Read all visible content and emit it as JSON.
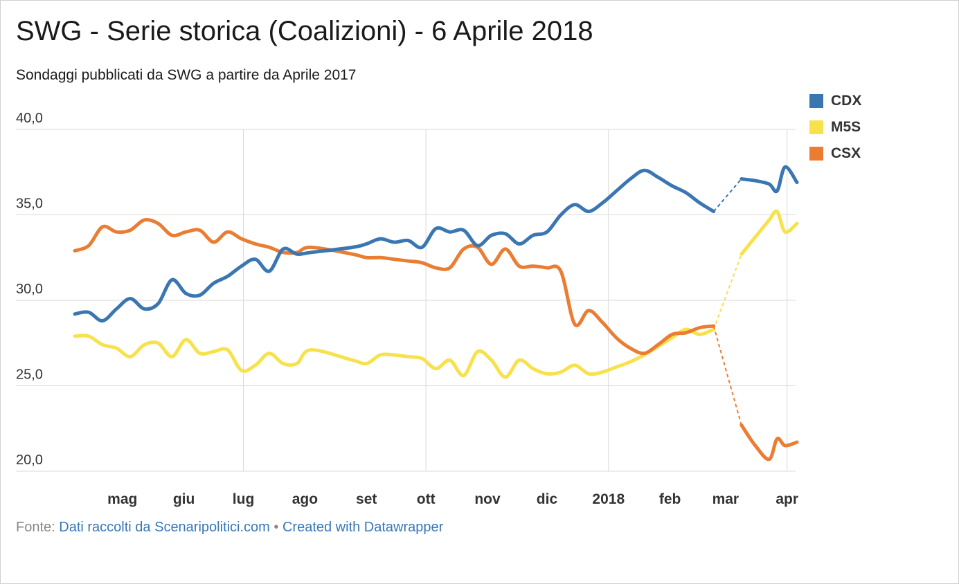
{
  "header": {
    "title": "SWG - Serie storica (Coalizioni) - 6 Aprile 2018",
    "subtitle": "Sondaggi pubblicati da SWG a partire da Aprile 2017"
  },
  "footer": {
    "prefix": "Fonte:",
    "source_link": "Dati raccolti da Scenaripolitici.com",
    "separator": "•",
    "credit_link": "Created with Datawrapper"
  },
  "colors": {
    "CDX": "#3a76b1",
    "M5S": "#f7e24d",
    "CSX": "#eb7d33",
    "grid": "#d9d9d9"
  },
  "chart_data": {
    "type": "line",
    "title": "SWG - Serie storica (Coalizioni) - 6 Aprile 2018",
    "subtitle": "Sondaggi pubblicati da SWG a partire da Aprile 2017",
    "xlabel": "",
    "ylabel": "",
    "x_ticks": [
      "mag",
      "giu",
      "lug",
      "ago",
      "set",
      "ott",
      "nov",
      "dic",
      "2018",
      "feb",
      "mar",
      "apr"
    ],
    "y_ticks": [
      "20,0",
      "25,0",
      "30,0",
      "35,0",
      "40,0"
    ],
    "ylim": [
      20,
      40
    ],
    "xlim": [
      "2017-04-07",
      "2018-04-06"
    ],
    "grid": true,
    "legend": "top-right",
    "gap_note_dashed": "feb-mar 2018 (dashed)",
    "series": [
      {
        "name": "CDX",
        "points": [
          [
            "2017-04-07",
            29.2
          ],
          [
            "2017-04-14",
            29.3
          ],
          [
            "2017-04-21",
            28.8
          ],
          [
            "2017-04-28",
            29.5
          ],
          [
            "2017-05-05",
            30.1
          ],
          [
            "2017-05-12",
            29.5
          ],
          [
            "2017-05-19",
            29.8
          ],
          [
            "2017-05-26",
            31.2
          ],
          [
            "2017-06-02",
            30.4
          ],
          [
            "2017-06-09",
            30.3
          ],
          [
            "2017-06-16",
            31.0
          ],
          [
            "2017-06-23",
            31.4
          ],
          [
            "2017-06-30",
            32.0
          ],
          [
            "2017-07-07",
            32.4
          ],
          [
            "2017-07-14",
            31.7
          ],
          [
            "2017-07-21",
            33.0
          ],
          [
            "2017-07-28",
            32.7
          ],
          [
            "2017-08-04",
            32.8
          ],
          [
            "2017-08-25",
            33.1
          ],
          [
            "2017-09-01",
            33.3
          ],
          [
            "2017-09-08",
            33.6
          ],
          [
            "2017-09-15",
            33.4
          ],
          [
            "2017-09-22",
            33.5
          ],
          [
            "2017-09-29",
            33.1
          ],
          [
            "2017-10-06",
            34.2
          ],
          [
            "2017-10-13",
            34.0
          ],
          [
            "2017-10-20",
            34.1
          ],
          [
            "2017-10-27",
            33.2
          ],
          [
            "2017-11-03",
            33.8
          ],
          [
            "2017-11-10",
            33.9
          ],
          [
            "2017-11-17",
            33.3
          ],
          [
            "2017-11-24",
            33.8
          ],
          [
            "2017-12-01",
            34.0
          ],
          [
            "2017-12-08",
            35.0
          ],
          [
            "2017-12-15",
            35.6
          ],
          [
            "2017-12-22",
            35.2
          ],
          [
            "2017-12-29",
            35.7
          ],
          [
            "2018-01-05",
            36.4
          ],
          [
            "2018-01-12",
            37.1
          ],
          [
            "2018-01-19",
            37.6
          ],
          [
            "2018-01-26",
            37.2
          ],
          [
            "2018-02-02",
            36.7
          ],
          [
            "2018-02-09",
            36.3
          ],
          [
            "2018-02-16",
            35.7
          ],
          [
            "2018-02-23",
            35.2
          ],
          [
            "2018-03-09",
            37.1
          ],
          [
            "2018-03-16",
            37.0
          ],
          [
            "2018-03-23",
            36.8
          ],
          [
            "2018-03-27",
            36.4
          ],
          [
            "2018-03-31",
            37.8
          ],
          [
            "2018-04-06",
            36.9
          ]
        ]
      },
      {
        "name": "M5S",
        "points": [
          [
            "2017-04-07",
            27.9
          ],
          [
            "2017-04-14",
            27.9
          ],
          [
            "2017-04-21",
            27.4
          ],
          [
            "2017-04-28",
            27.2
          ],
          [
            "2017-05-05",
            26.7
          ],
          [
            "2017-05-12",
            27.4
          ],
          [
            "2017-05-19",
            27.5
          ],
          [
            "2017-05-26",
            26.7
          ],
          [
            "2017-06-02",
            27.7
          ],
          [
            "2017-06-09",
            26.9
          ],
          [
            "2017-06-16",
            27.0
          ],
          [
            "2017-06-23",
            27.1
          ],
          [
            "2017-06-30",
            25.9
          ],
          [
            "2017-07-07",
            26.2
          ],
          [
            "2017-07-14",
            26.9
          ],
          [
            "2017-07-21",
            26.3
          ],
          [
            "2017-07-28",
            26.3
          ],
          [
            "2017-08-04",
            27.1
          ],
          [
            "2017-08-25",
            26.5
          ],
          [
            "2017-09-01",
            26.3
          ],
          [
            "2017-09-08",
            26.8
          ],
          [
            "2017-09-15",
            26.8
          ],
          [
            "2017-09-22",
            26.7
          ],
          [
            "2017-09-29",
            26.6
          ],
          [
            "2017-10-06",
            26.0
          ],
          [
            "2017-10-13",
            26.5
          ],
          [
            "2017-10-20",
            25.6
          ],
          [
            "2017-10-27",
            27.0
          ],
          [
            "2017-11-03",
            26.5
          ],
          [
            "2017-11-10",
            25.5
          ],
          [
            "2017-11-17",
            26.5
          ],
          [
            "2017-11-24",
            26.0
          ],
          [
            "2017-12-01",
            25.7
          ],
          [
            "2017-12-08",
            25.8
          ],
          [
            "2017-12-15",
            26.2
          ],
          [
            "2017-12-22",
            25.7
          ],
          [
            "2017-12-29",
            25.8
          ],
          [
            "2018-01-05",
            26.1
          ],
          [
            "2018-01-12",
            26.4
          ],
          [
            "2018-01-19",
            26.8
          ],
          [
            "2018-01-26",
            27.3
          ],
          [
            "2018-02-02",
            27.8
          ],
          [
            "2018-02-09",
            28.3
          ],
          [
            "2018-02-16",
            28.0
          ],
          [
            "2018-02-23",
            28.3
          ],
          [
            "2018-03-09",
            32.7
          ],
          [
            "2018-03-16",
            33.7
          ],
          [
            "2018-03-23",
            34.7
          ],
          [
            "2018-03-27",
            35.2
          ],
          [
            "2018-03-31",
            34.0
          ],
          [
            "2018-04-06",
            34.5
          ]
        ]
      },
      {
        "name": "CSX",
        "points": [
          [
            "2017-04-07",
            32.9
          ],
          [
            "2017-04-14",
            33.2
          ],
          [
            "2017-04-21",
            34.3
          ],
          [
            "2017-04-28",
            34.0
          ],
          [
            "2017-05-05",
            34.1
          ],
          [
            "2017-05-12",
            34.7
          ],
          [
            "2017-05-19",
            34.5
          ],
          [
            "2017-05-26",
            33.8
          ],
          [
            "2017-06-02",
            34.0
          ],
          [
            "2017-06-09",
            34.1
          ],
          [
            "2017-06-16",
            33.4
          ],
          [
            "2017-06-23",
            34.0
          ],
          [
            "2017-06-30",
            33.6
          ],
          [
            "2017-07-07",
            33.3
          ],
          [
            "2017-07-14",
            33.1
          ],
          [
            "2017-07-21",
            32.8
          ],
          [
            "2017-07-28",
            32.8
          ],
          [
            "2017-08-04",
            33.1
          ],
          [
            "2017-08-25",
            32.7
          ],
          [
            "2017-09-01",
            32.5
          ],
          [
            "2017-09-08",
            32.5
          ],
          [
            "2017-09-15",
            32.4
          ],
          [
            "2017-09-22",
            32.3
          ],
          [
            "2017-09-29",
            32.2
          ],
          [
            "2017-10-06",
            31.9
          ],
          [
            "2017-10-13",
            31.9
          ],
          [
            "2017-10-20",
            33.0
          ],
          [
            "2017-10-27",
            33.1
          ],
          [
            "2017-11-03",
            32.1
          ],
          [
            "2017-11-10",
            33.0
          ],
          [
            "2017-11-17",
            32.0
          ],
          [
            "2017-11-24",
            32.0
          ],
          [
            "2017-12-01",
            31.9
          ],
          [
            "2017-12-08",
            31.7
          ],
          [
            "2017-12-15",
            28.6
          ],
          [
            "2017-12-22",
            29.4
          ],
          [
            "2017-12-29",
            28.7
          ],
          [
            "2018-01-05",
            27.8
          ],
          [
            "2018-01-12",
            27.2
          ],
          [
            "2018-01-19",
            26.9
          ],
          [
            "2018-01-26",
            27.4
          ],
          [
            "2018-02-02",
            28.0
          ],
          [
            "2018-02-09",
            28.1
          ],
          [
            "2018-02-16",
            28.4
          ],
          [
            "2018-02-23",
            28.5
          ],
          [
            "2018-03-09",
            22.7
          ],
          [
            "2018-03-16",
            21.5
          ],
          [
            "2018-03-23",
            20.7
          ],
          [
            "2018-03-27",
            21.9
          ],
          [
            "2018-03-31",
            21.5
          ],
          [
            "2018-04-06",
            21.7
          ]
        ]
      }
    ]
  }
}
